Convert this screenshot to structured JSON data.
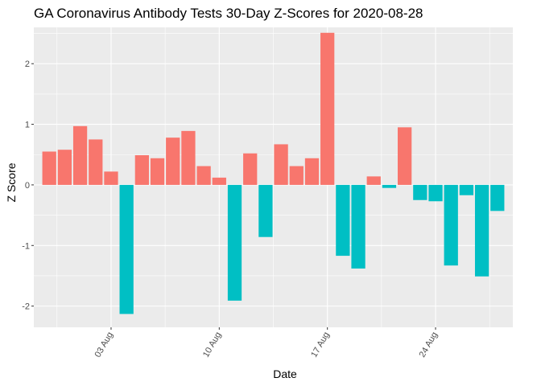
{
  "chart_data": {
    "type": "bar",
    "title": "GA Coronavirus Antibody Tests 30-Day Z-Scores for 2020-08-28",
    "xlabel": "Date",
    "ylabel": "Z Score",
    "x": [
      "2020-07-30",
      "2020-07-31",
      "2020-08-01",
      "2020-08-02",
      "2020-08-03",
      "2020-08-04",
      "2020-08-05",
      "2020-08-06",
      "2020-08-07",
      "2020-08-08",
      "2020-08-09",
      "2020-08-10",
      "2020-08-11",
      "2020-08-12",
      "2020-08-13",
      "2020-08-14",
      "2020-08-15",
      "2020-08-16",
      "2020-08-17",
      "2020-08-18",
      "2020-08-19",
      "2020-08-20",
      "2020-08-21",
      "2020-08-22",
      "2020-08-23",
      "2020-08-24",
      "2020-08-25",
      "2020-08-26",
      "2020-08-27",
      "2020-08-28"
    ],
    "values": [
      0.55,
      0.58,
      0.97,
      0.75,
      0.22,
      -2.13,
      0.49,
      0.44,
      0.78,
      0.89,
      0.31,
      0.12,
      -1.91,
      0.52,
      -0.86,
      0.67,
      0.31,
      0.44,
      2.51,
      -1.17,
      -1.38,
      0.14,
      -0.05,
      0.95,
      -0.25,
      -0.27,
      -1.33,
      -0.17,
      -1.51,
      -0.43
    ],
    "xlim": [
      "2020-07-29",
      "2020-08-29"
    ],
    "ylim": [
      -2.35,
      2.6
    ],
    "x_ticks": [
      "03 Aug",
      "10 Aug",
      "17 Aug",
      "24 Aug"
    ],
    "x_tick_dates": [
      "2020-08-03",
      "2020-08-10",
      "2020-08-17",
      "2020-08-24"
    ],
    "y_ticks": [
      -2,
      -1,
      0,
      1,
      2
    ],
    "grid": true,
    "legend": "none",
    "colors": {
      "positive": "#F8766D",
      "negative": "#00BFC4",
      "panel": "#EBEBEB",
      "grid": "#FFFFFF"
    }
  }
}
